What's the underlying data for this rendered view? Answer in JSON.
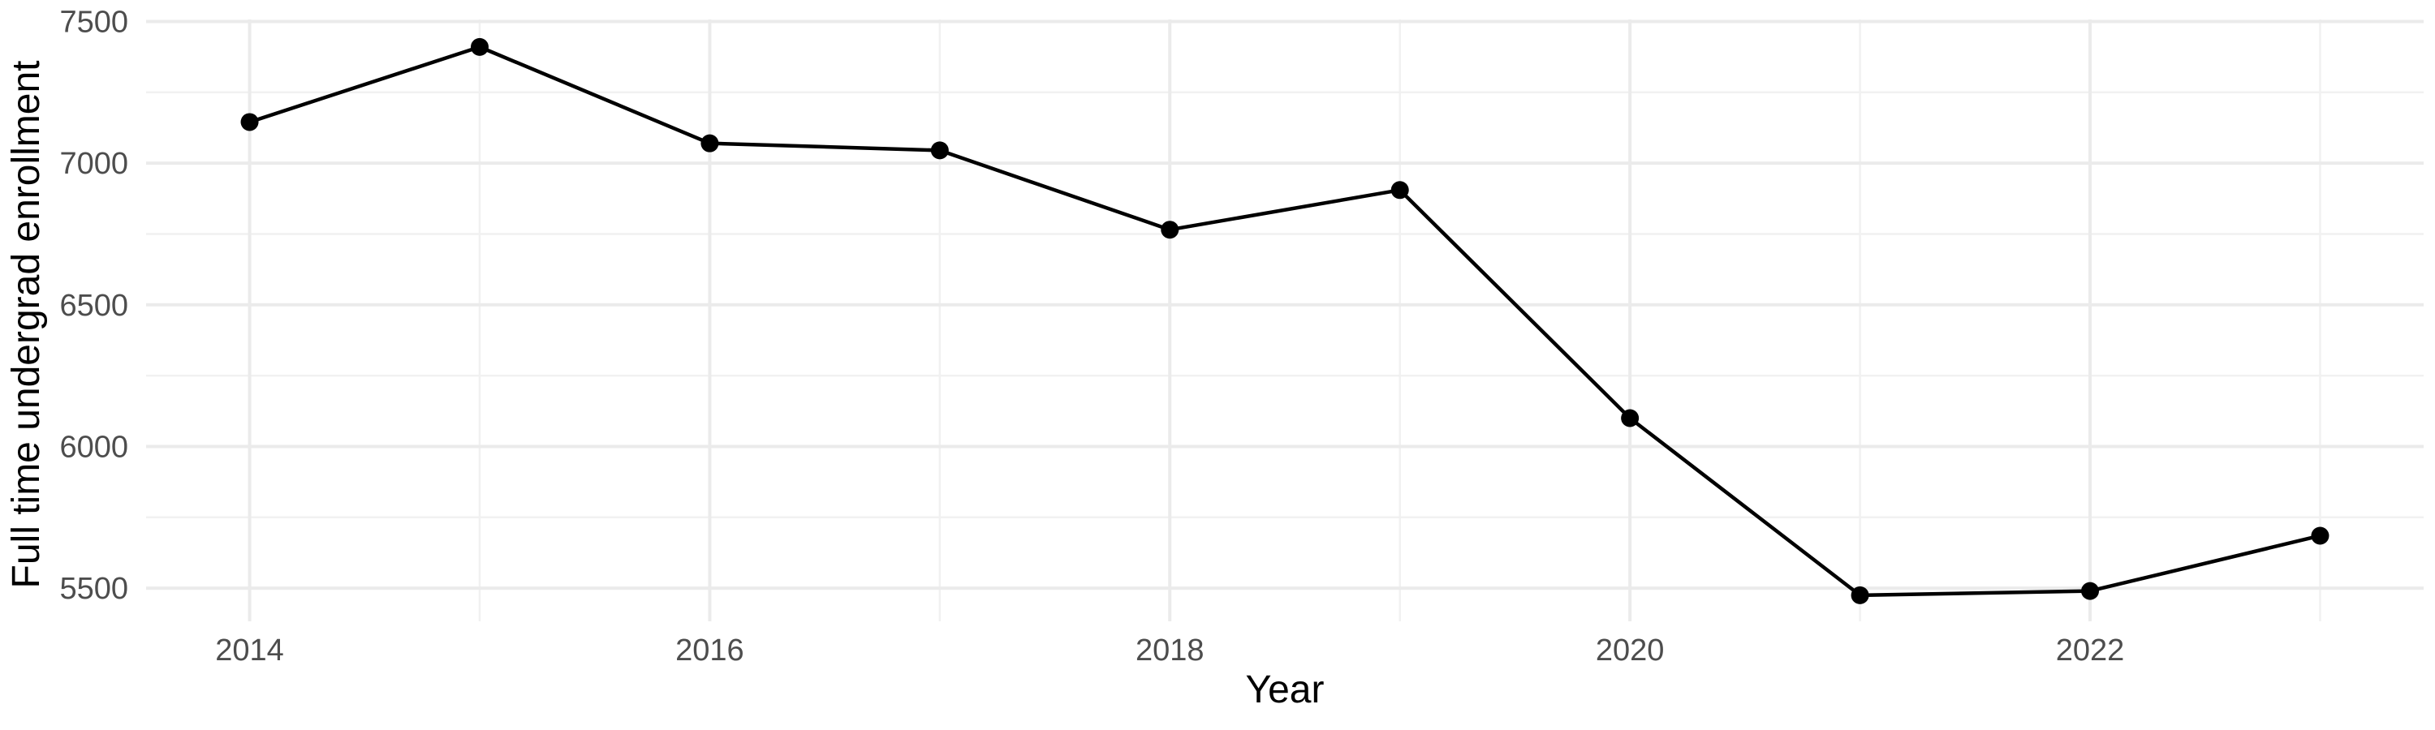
{
  "chart_data": {
    "type": "line",
    "title": "",
    "xlabel": "Year",
    "ylabel": "Full time undergrad enrollment",
    "series": [
      {
        "name": "Full time undergrad enrollment",
        "x": [
          2014,
          2015,
          2016,
          2017,
          2018,
          2019,
          2020,
          2021,
          2022,
          2023
        ],
        "y": [
          7145,
          7410,
          7070,
          7045,
          6765,
          6905,
          6100,
          5475,
          5490,
          5685
        ]
      }
    ],
    "x_ticks_major": [
      2014,
      2016,
      2018,
      2020,
      2022
    ],
    "x_ticks_minor": [
      2015,
      2017,
      2019,
      2021,
      2023
    ],
    "y_ticks_major": [
      5500,
      6000,
      6500,
      7000,
      7500
    ],
    "y_ticks_minor": [
      5750,
      6250,
      6750,
      7250
    ],
    "xlim": [
      2013.55,
      2023.45
    ],
    "ylim": [
      5383,
      7507
    ],
    "grid": "on",
    "legend": "none",
    "marker": "point",
    "colors": {
      "line": "#000000",
      "point": "#000000",
      "grid_major": "#EBEBEB",
      "grid_minor": "#F1F1F1",
      "tick_label": "#4D4D4D",
      "axis_title": "#000000",
      "background": "#FFFFFF"
    }
  }
}
